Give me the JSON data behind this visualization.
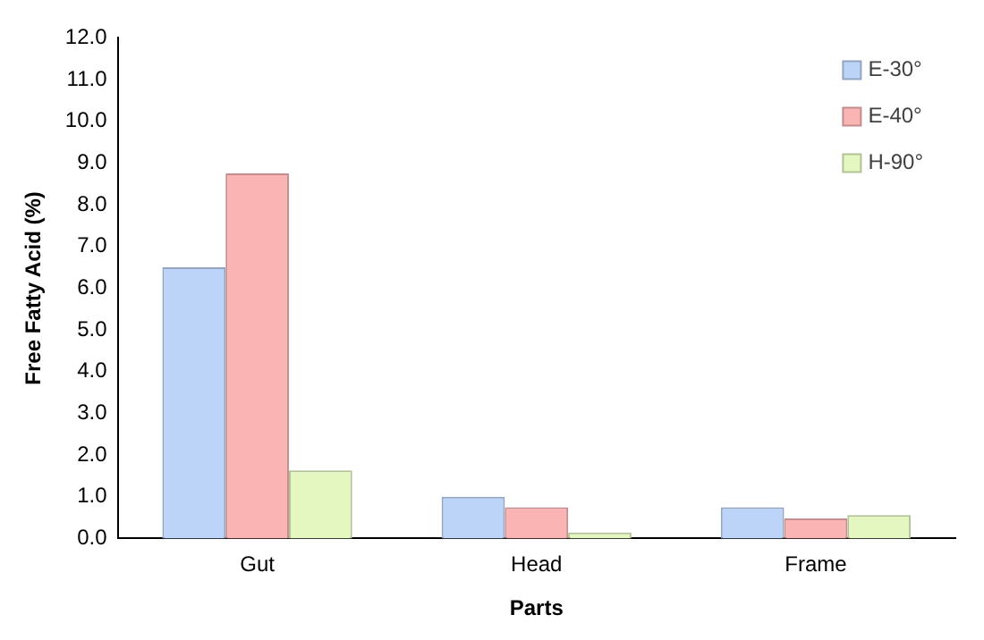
{
  "chart_data": {
    "type": "bar",
    "xlabel": "Parts",
    "ylabel": "Free Fatty Acid (%)",
    "categories": [
      "Gut",
      "Head",
      "Frame"
    ],
    "series": [
      {
        "name": "E-30°",
        "color": "#bcd4f8",
        "values": [
          6.5,
          1.0,
          0.75
        ]
      },
      {
        "name": "E-40°",
        "color": "#fbb4b4",
        "values": [
          8.75,
          0.75,
          0.48
        ]
      },
      {
        "name": "H-90°",
        "color": "#e4f7c0",
        "values": [
          1.63,
          0.14,
          0.56
        ]
      }
    ],
    "ylim": [
      0,
      12
    ],
    "yticks": [
      {
        "value": 0,
        "label": "0.0"
      },
      {
        "value": 1,
        "label": "1.0"
      },
      {
        "value": 2,
        "label": "2.0"
      },
      {
        "value": 3,
        "label": "3.0"
      },
      {
        "value": 4,
        "label": "4.0"
      },
      {
        "value": 5,
        "label": "5.0"
      },
      {
        "value": 6,
        "label": "6.0"
      },
      {
        "value": 7,
        "label": "7.0"
      },
      {
        "value": 8,
        "label": "8.0"
      },
      {
        "value": 9,
        "label": "9.0"
      },
      {
        "value": 10,
        "label": "10.0"
      },
      {
        "value": 11,
        "label": "11.0"
      },
      {
        "value": 12,
        "label": "12.0"
      }
    ],
    "grid": false,
    "legend": "top right"
  }
}
